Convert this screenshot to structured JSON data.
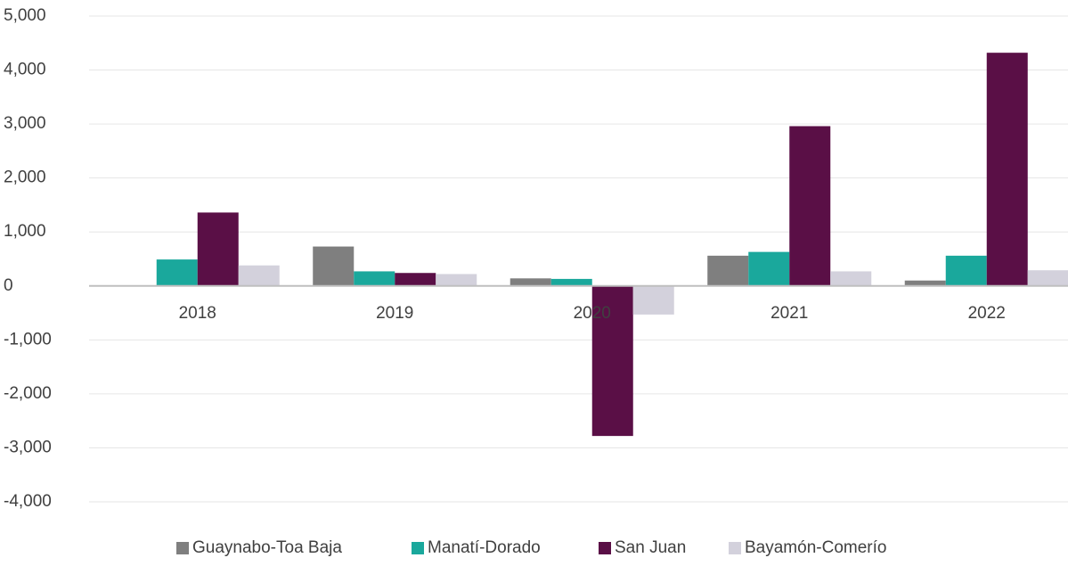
{
  "chart_data": {
    "type": "bar",
    "categories": [
      "2018",
      "2019",
      "2020",
      "2021",
      "2022"
    ],
    "series": [
      {
        "name": "Guaynabo-Toa Baja",
        "color": "#7f7f7f",
        "values": [
          0,
          730,
          140,
          560,
          100
        ]
      },
      {
        "name": "Manatí-Dorado",
        "color": "#1aa89c",
        "values": [
          490,
          270,
          130,
          630,
          560
        ]
      },
      {
        "name": "San Juan",
        "color": "#5a0f46",
        "values": [
          1360,
          240,
          -2780,
          2960,
          4320
        ]
      },
      {
        "name": "Bayamón-Comerío",
        "color": "#d3d1dc",
        "values": [
          380,
          220,
          -530,
          270,
          290
        ]
      }
    ],
    "ylim": [
      -4000,
      5000
    ],
    "yticks": [
      {
        "value": -4000,
        "label": "-4,000"
      },
      {
        "value": -3000,
        "label": "-3,000"
      },
      {
        "value": -2000,
        "label": "-2,000"
      },
      {
        "value": -1000,
        "label": "-1,000"
      },
      0,
      {
        "value": 1000,
        "label": "1,000"
      },
      {
        "value": 2000,
        "label": "2,000"
      },
      {
        "value": 3000,
        "label": "3,000"
      },
      {
        "value": 4000,
        "label": "4,000"
      },
      {
        "value": 5000,
        "label": "5,000"
      }
    ],
    "grid": true,
    "legend": "bottom"
  }
}
